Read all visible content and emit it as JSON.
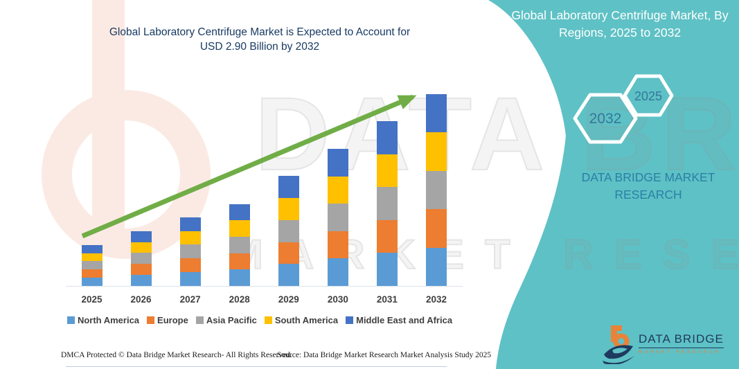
{
  "chart": {
    "title_line1": "Global Laboratory Centrifuge Market is Expected to Account for",
    "title_line2": "USD 2.90 Billion by 2032",
    "title_color": "#183A63"
  },
  "chart_data": {
    "type": "bar",
    "stacked": true,
    "title": "Global Laboratory Centrifuge Market is Expected to Account for USD 2.90 Billion by 2032",
    "unit": "USD Billion",
    "categories": [
      "2025",
      "2026",
      "2027",
      "2028",
      "2029",
      "2030",
      "2031",
      "2032"
    ],
    "series": [
      {
        "name": "North America",
        "color": "#5B9BD5",
        "values": [
          0.124,
          0.166,
          0.208,
          0.248,
          0.332,
          0.414,
          0.498,
          0.58
        ]
      },
      {
        "name": "Europe",
        "color": "#ED7D31",
        "values": [
          0.124,
          0.166,
          0.208,
          0.248,
          0.332,
          0.414,
          0.498,
          0.58
        ]
      },
      {
        "name": "Asia Pacific",
        "color": "#A5A5A5",
        "values": [
          0.124,
          0.166,
          0.208,
          0.248,
          0.332,
          0.414,
          0.498,
          0.58
        ]
      },
      {
        "name": "South America",
        "color": "#FFC000",
        "values": [
          0.124,
          0.166,
          0.208,
          0.248,
          0.332,
          0.414,
          0.498,
          0.58
        ]
      },
      {
        "name": "Middle East and Africa",
        "color": "#4472C4",
        "values": [
          0.124,
          0.166,
          0.208,
          0.248,
          0.332,
          0.414,
          0.498,
          0.58
        ]
      }
    ],
    "totals": [
      0.62,
      0.83,
      1.04,
      1.24,
      1.66,
      2.07,
      2.49,
      2.9
    ],
    "ylim": [
      0,
      3.0
    ],
    "grid": false,
    "legend_position": "bottom",
    "annotation": "USD 2.90 Billion by 2032",
    "trend_arrow_color": "#70AD47"
  },
  "side_panel": {
    "bg_color": "#5EC1C5",
    "title": "Global Laboratory Centrifuge Market, By Regions, 2025 to 2032",
    "hexagon_large_label": "2032",
    "hexagon_small_label": "2025",
    "hexagon_label_color": "#33789B",
    "subtitle": "DATA BRIDGE MARKET RESEARCH",
    "subtitle_color": "#2C7FA6"
  },
  "logo": {
    "name": "DATA BRIDGE",
    "tagline": "MARKET RESEARCH",
    "name_color": "#1E3A5F",
    "tagline_color": "#E8833A"
  },
  "footer": {
    "left": "DMCA Protected © Data Bridge Market Research- All Rights Reserved.",
    "source": "Source: Data Bridge Market Research Market Analysis Study 2025"
  },
  "watermark": {
    "row1": "DATA BRIDGE",
    "row2": "MARKET RESEARCH"
  }
}
